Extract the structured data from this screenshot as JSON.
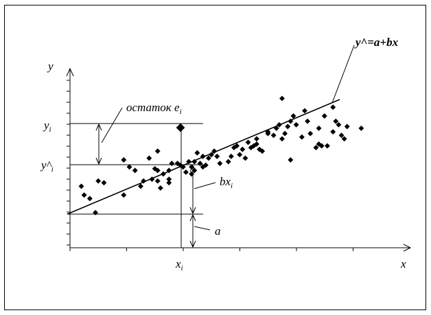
{
  "labels": {
    "y_axis": "y",
    "x_axis": "x",
    "equation": "y^=a+bx",
    "residual_prefix": "остаток e",
    "residual_sub": "i",
    "yi_main": "y",
    "yi_sub": "i",
    "yhat_main": "y^",
    "yhat_sub": "i",
    "bx_main": "bx",
    "bx_sub": "i",
    "a": "a",
    "xi_main": "x",
    "xi_sub": "i"
  },
  "chart_data": {
    "type": "scatter",
    "title": "",
    "xlabel": "x",
    "ylabel": "y",
    "xlim": [
      0,
      100
    ],
    "ylim": [
      0,
      100
    ],
    "grid": false,
    "regression_line": {
      "intercept": 18,
      "slope": 0.55,
      "x_range": [
        0,
        95
      ]
    },
    "highlighted_point": {
      "x": 39.5,
      "y": 69
    },
    "points": [
      {
        "x": 4,
        "y": 35
      },
      {
        "x": 5,
        "y": 30
      },
      {
        "x": 7,
        "y": 28
      },
      {
        "x": 9,
        "y": 20
      },
      {
        "x": 10,
        "y": 38
      },
      {
        "x": 12,
        "y": 37
      },
      {
        "x": 19,
        "y": 50
      },
      {
        "x": 21,
        "y": 46
      },
      {
        "x": 23,
        "y": 44
      },
      {
        "x": 19,
        "y": 30
      },
      {
        "x": 25,
        "y": 35
      },
      {
        "x": 26,
        "y": 38
      },
      {
        "x": 28,
        "y": 51
      },
      {
        "x": 29,
        "y": 39
      },
      {
        "x": 31,
        "y": 38
      },
      {
        "x": 31,
        "y": 55
      },
      {
        "x": 30,
        "y": 45
      },
      {
        "x": 32,
        "y": 34
      },
      {
        "x": 35,
        "y": 39
      },
      {
        "x": 35,
        "y": 37
      },
      {
        "x": 38,
        "y": 48
      },
      {
        "x": 39,
        "y": 47
      },
      {
        "x": 40,
        "y": 46
      },
      {
        "x": 42,
        "y": 49
      },
      {
        "x": 43,
        "y": 42
      },
      {
        "x": 44,
        "y": 49
      },
      {
        "x": 45,
        "y": 54
      },
      {
        "x": 46,
        "y": 48
      },
      {
        "x": 47,
        "y": 46
      },
      {
        "x": 48,
        "y": 47
      },
      {
        "x": 49,
        "y": 51
      },
      {
        "x": 47,
        "y": 52
      },
      {
        "x": 50,
        "y": 53
      },
      {
        "x": 51,
        "y": 55
      },
      {
        "x": 52,
        "y": 52
      },
      {
        "x": 53,
        "y": 48
      },
      {
        "x": 56,
        "y": 49
      },
      {
        "x": 57,
        "y": 52
      },
      {
        "x": 58,
        "y": 57
      },
      {
        "x": 60,
        "y": 53
      },
      {
        "x": 62,
        "y": 51
      },
      {
        "x": 63,
        "y": 60
      },
      {
        "x": 64,
        "y": 57
      },
      {
        "x": 65,
        "y": 58
      },
      {
        "x": 66,
        "y": 62
      },
      {
        "x": 67,
        "y": 56
      },
      {
        "x": 68,
        "y": 55
      },
      {
        "x": 70,
        "y": 65
      },
      {
        "x": 72,
        "y": 64
      },
      {
        "x": 73,
        "y": 68
      },
      {
        "x": 74,
        "y": 70
      },
      {
        "x": 75,
        "y": 62
      },
      {
        "x": 75,
        "y": 85
      },
      {
        "x": 76,
        "y": 65
      },
      {
        "x": 77,
        "y": 69
      },
      {
        "x": 78,
        "y": 72
      },
      {
        "x": 79,
        "y": 75
      },
      {
        "x": 78,
        "y": 50
      },
      {
        "x": 80,
        "y": 70
      },
      {
        "x": 82,
        "y": 63
      },
      {
        "x": 85,
        "y": 65
      },
      {
        "x": 87,
        "y": 57
      },
      {
        "x": 88,
        "y": 59
      },
      {
        "x": 84,
        "y": 72
      },
      {
        "x": 88,
        "y": 68
      },
      {
        "x": 89,
        "y": 58
      },
      {
        "x": 91,
        "y": 58
      },
      {
        "x": 90,
        "y": 75
      },
      {
        "x": 93,
        "y": 66
      },
      {
        "x": 94,
        "y": 72
      },
      {
        "x": 95,
        "y": 70
      },
      {
        "x": 97,
        "y": 62
      },
      {
        "x": 98,
        "y": 69
      },
      {
        "x": 103,
        "y": 68
      },
      {
        "x": 96,
        "y": 64
      },
      {
        "x": 93,
        "y": 80
      },
      {
        "x": 83,
        "y": 78
      },
      {
        "x": 70,
        "y": 66
      },
      {
        "x": 66,
        "y": 59
      },
      {
        "x": 61,
        "y": 56
      },
      {
        "x": 59,
        "y": 58
      },
      {
        "x": 44,
        "y": 44
      },
      {
        "x": 35,
        "y": 44
      },
      {
        "x": 31,
        "y": 44
      },
      {
        "x": 33,
        "y": 42
      },
      {
        "x": 36,
        "y": 48
      },
      {
        "x": 41,
        "y": 43
      },
      {
        "x": 43,
        "y": 46
      }
    ]
  }
}
